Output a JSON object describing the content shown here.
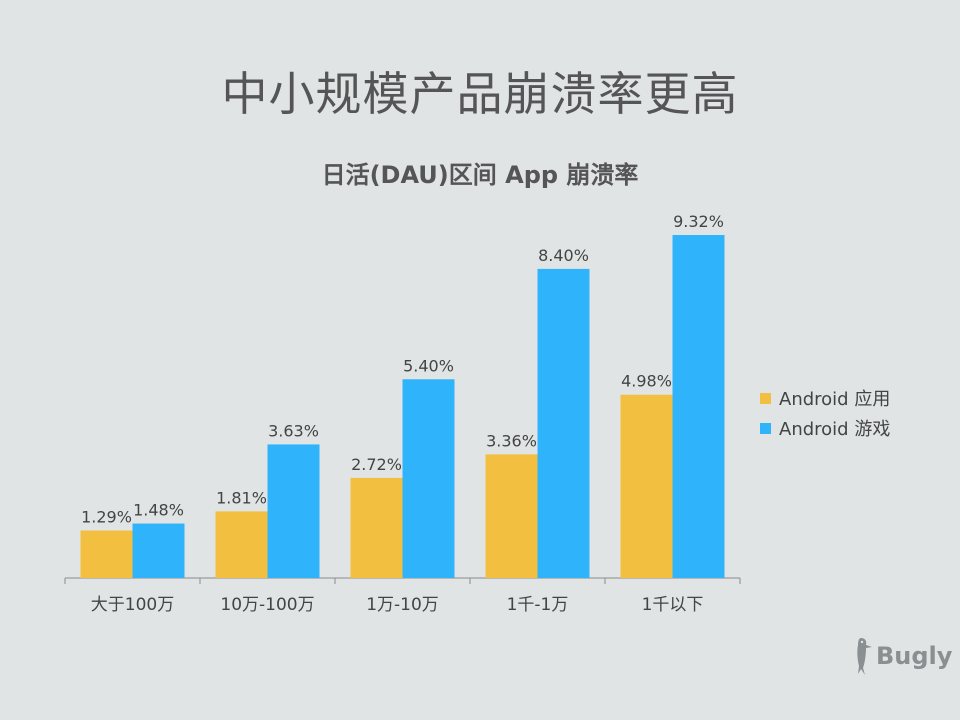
{
  "slide_title": "中小规模产品崩溃率更高",
  "brand": {
    "name": "Bugly",
    "icon": "woodpecker-icon"
  },
  "chart_data": {
    "type": "bar",
    "title": "日活(DAU)区间 App 崩溃率",
    "categories": [
      "大于100万",
      "10万-100万",
      "1万-10万",
      "1千-1万",
      "1千以下"
    ],
    "series": [
      {
        "name": "Android 应用",
        "color": "#f3bf40",
        "values": [
          1.29,
          1.81,
          2.72,
          3.36,
          4.98
        ],
        "labels": [
          "1.29%",
          "1.81%",
          "2.72%",
          "3.36%",
          "4.98%"
        ]
      },
      {
        "name": "Android 游戏",
        "color": "#2fb4fb",
        "values": [
          1.48,
          3.63,
          5.4,
          8.4,
          9.32
        ],
        "labels": [
          "1.48%",
          "3.63%",
          "5.40%",
          "8.40%",
          "9.32%"
        ]
      }
    ],
    "ylim": [
      0,
      10
    ],
    "grid": false,
    "legend": "right"
  }
}
